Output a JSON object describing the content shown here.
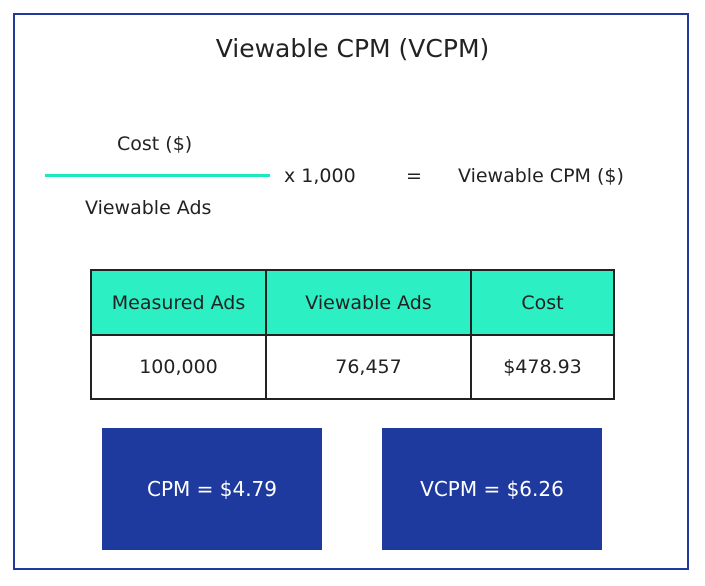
{
  "title": "Viewable CPM (VCPM)",
  "formula": {
    "numerator": "Cost ($)",
    "denominator": "Viewable Ads",
    "multiplier": "x 1,000",
    "equals": "=",
    "result": "Viewable CPM ($)"
  },
  "table": {
    "header": [
      "Measured Ads",
      "Viewable Ads",
      "Cost"
    ],
    "rows": [
      [
        "100,000",
        "76,457",
        "$478.93"
      ]
    ]
  },
  "results": [
    "CPM = $4.79",
    "VCPM = $6.26"
  ]
}
